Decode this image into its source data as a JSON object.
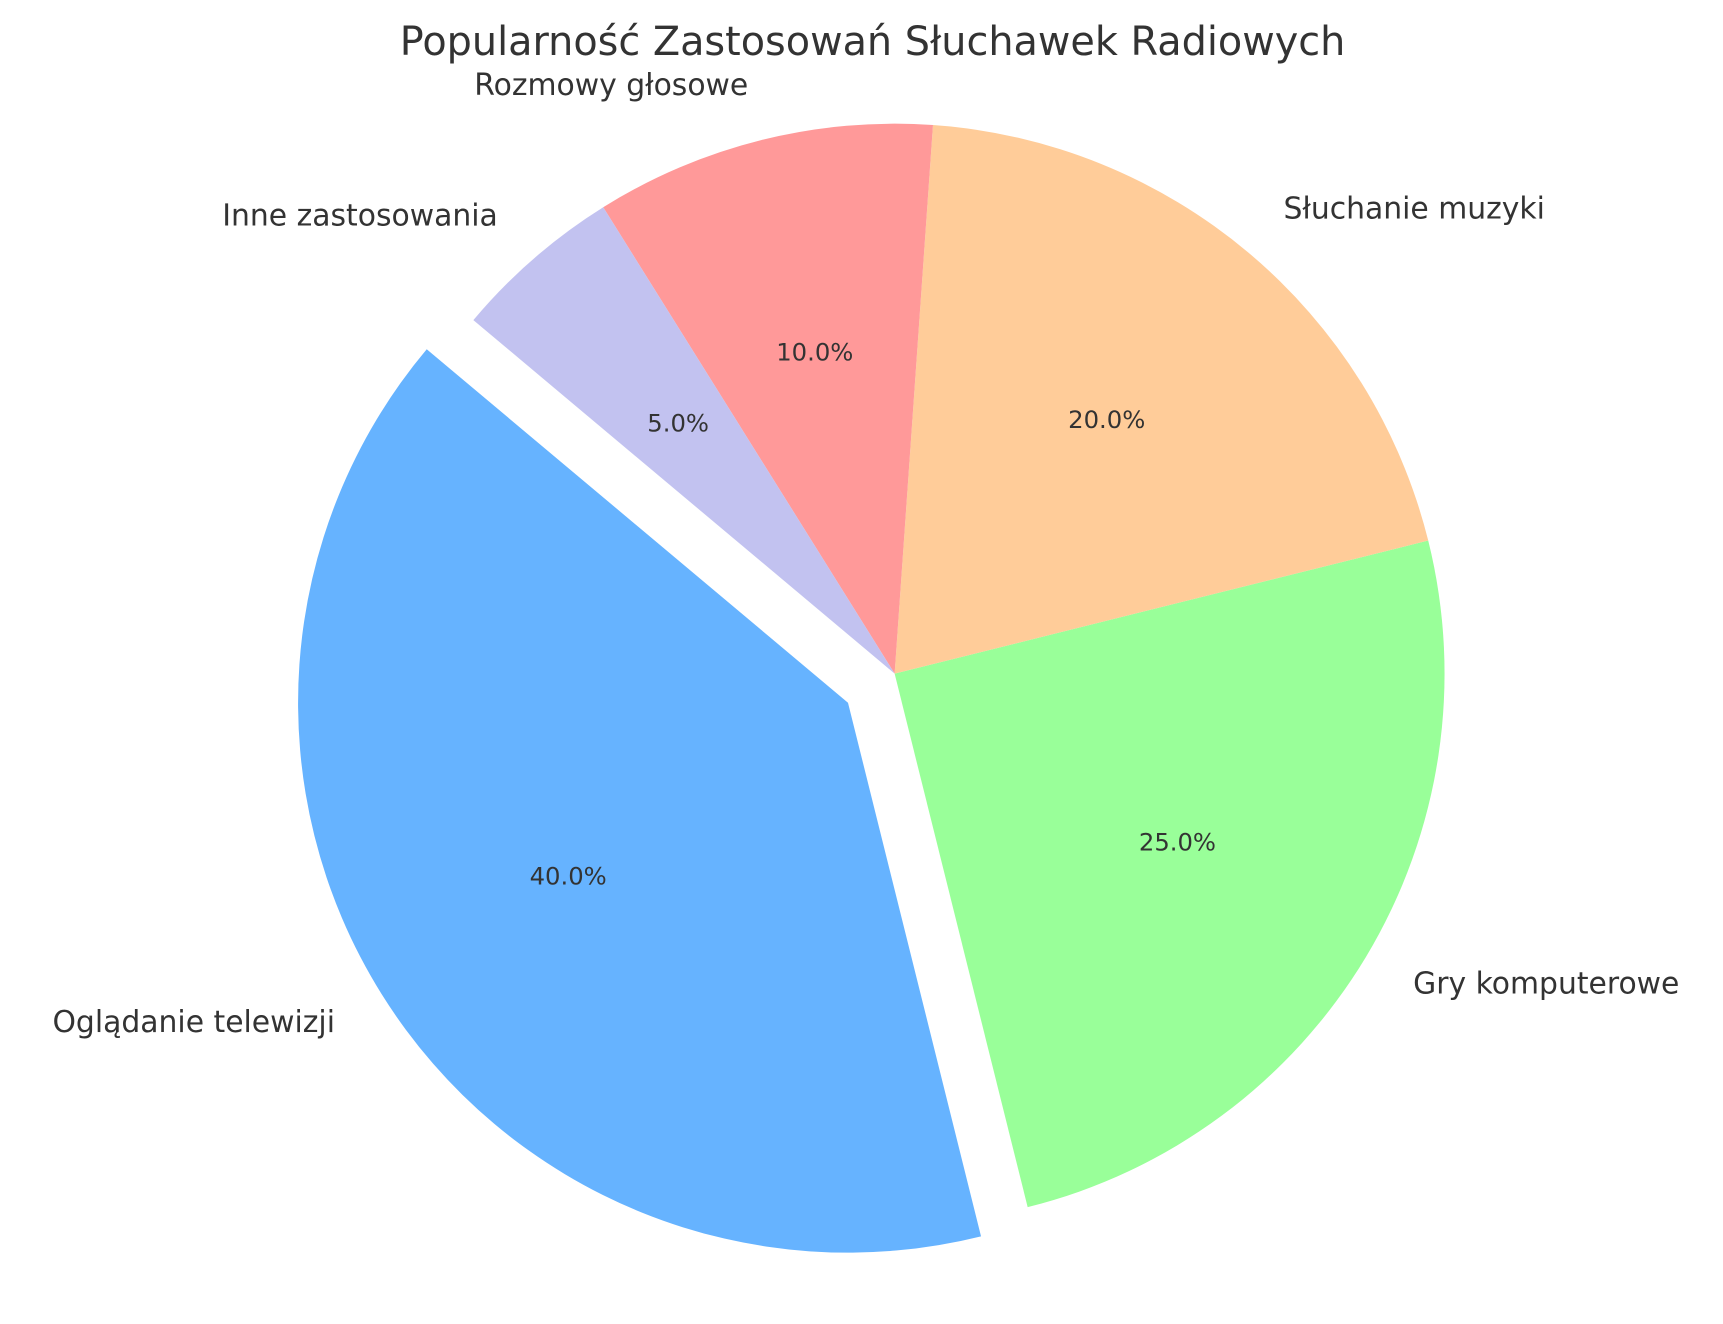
{
  "chart_data": {
    "type": "pie",
    "title": "Popularność Zastosowań Słuchawek Radiowych",
    "categories": [
      "Oglądanie telewizji",
      "Gry komputerowe",
      "Słuchanie muzyki",
      "Rozmowy głosowe",
      "Inne zastosowania"
    ],
    "values": [
      40,
      25,
      20,
      10,
      5
    ],
    "value_labels": [
      "40.0%",
      "25.0%",
      "20.0%",
      "10.0%",
      "5.0%"
    ],
    "colors": [
      "#66b3ff",
      "#99ff99",
      "#ffcc99",
      "#ff9999",
      "#c2c2f0"
    ],
    "explode": [
      0.1,
      0,
      0,
      0,
      0
    ],
    "start_angle": 140,
    "direction": "counterclockwise"
  }
}
